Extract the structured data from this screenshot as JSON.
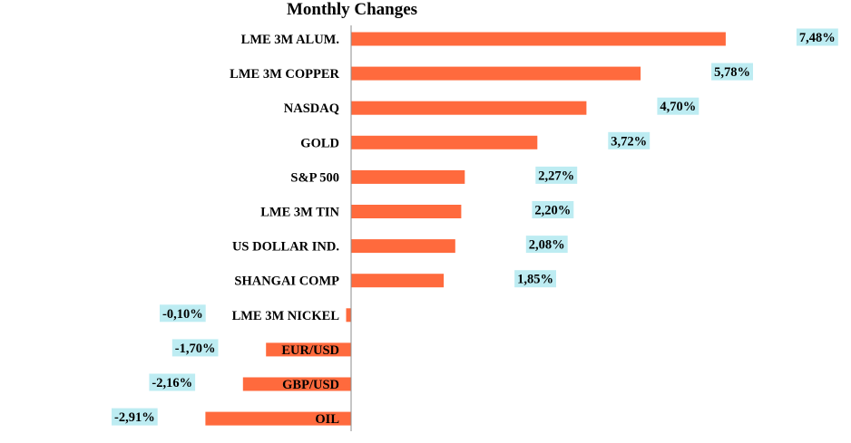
{
  "chart_data": {
    "type": "bar",
    "orientation": "horizontal",
    "title": "Monthly Changes",
    "xlabel": "",
    "ylabel": "",
    "grid": false,
    "legend": "none",
    "unit": "%",
    "decimal_separator": ",",
    "xlim": [
      -3,
      8
    ],
    "categories": [
      "LME 3M ALUM.",
      "LME 3M COPPER",
      "NASDAQ",
      "GOLD",
      "S&P 500",
      "LME 3M TIN",
      "US DOLLAR IND.",
      "SHANGAI COMP",
      "LME 3M NICKEL",
      "EUR/USD",
      "GBP/USD",
      "OIL"
    ],
    "values": [
      7.48,
      5.78,
      4.7,
      3.72,
      2.27,
      2.2,
      2.08,
      1.85,
      -0.1,
      -1.7,
      -2.16,
      -2.91
    ],
    "value_labels": [
      "7,48%",
      "5,78%",
      "4,70%",
      "3,72%",
      "2,27%",
      "2,20%",
      "2,08%",
      "1,85%",
      "-0,10%",
      "-1,70%",
      "-2,16%",
      "-2,91%"
    ]
  },
  "colors": {
    "bar": "#ff6a3d",
    "label_box": "#bdecf2",
    "axis": "#8c8c8c",
    "text": "#000000"
  }
}
